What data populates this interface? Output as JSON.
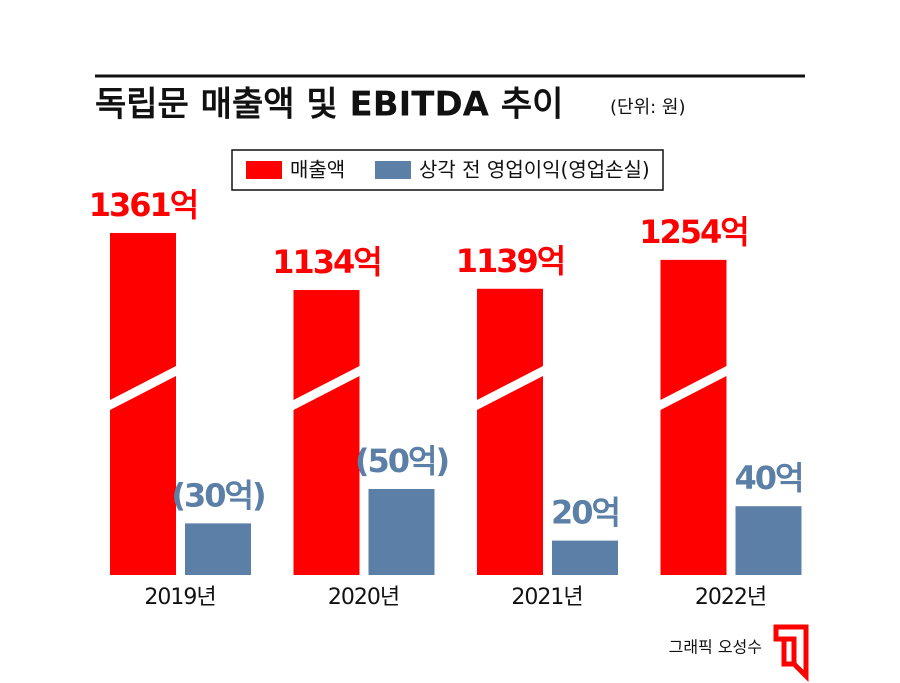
{
  "chart_data": {
    "type": "bar",
    "title": "독립문 매출액 및 EBITDA 추이",
    "subtitle": "(단위: 원)",
    "categories": [
      "2019년",
      "2020년",
      "2021년",
      "2022년"
    ],
    "series": [
      {
        "name": "매출액",
        "color": "#ff0000",
        "values": [
          1361,
          1134,
          1139,
          1254
        ],
        "value_labels": [
          "1361억",
          "1134억",
          "1139억",
          "1254억"
        ]
      },
      {
        "name": "상각 전 영업이익(영업손실)",
        "color": "#5b7fa6",
        "values": [
          -30,
          -50,
          20,
          40
        ],
        "value_labels": [
          "(30억)",
          "(50억)",
          "20억",
          "40억"
        ]
      }
    ],
    "credit": "그래픽 오성수"
  }
}
